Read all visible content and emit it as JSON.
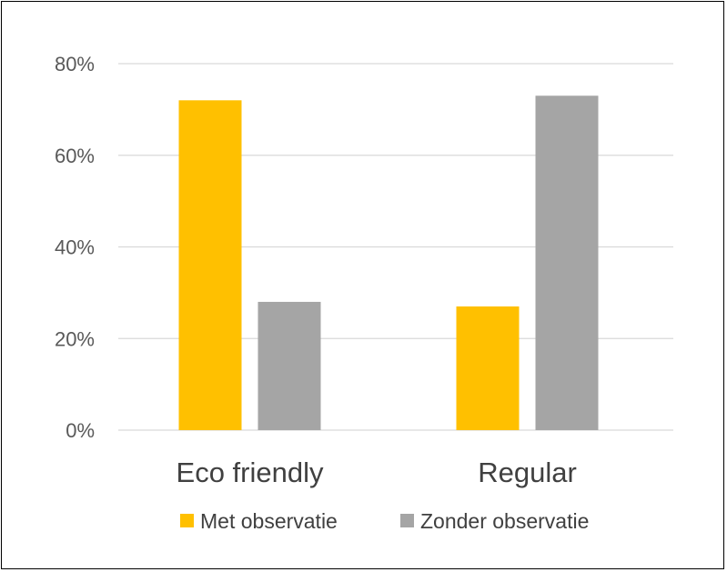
{
  "chart_data": {
    "type": "bar",
    "categories": [
      "Eco friendly",
      "Regular"
    ],
    "series": [
      {
        "name": "Met observatie",
        "values": [
          72,
          27
        ],
        "color": "#FFC000"
      },
      {
        "name": "Zonder observatie",
        "values": [
          28,
          73
        ],
        "color": "#A5A5A5"
      }
    ],
    "yticks": [
      "0%",
      "20%",
      "40%",
      "60%",
      "80%"
    ],
    "ylim": [
      0,
      80
    ],
    "y_unit": "%",
    "grid": true,
    "gridline_color": "#D9D9D9",
    "legend_position": "bottom"
  }
}
